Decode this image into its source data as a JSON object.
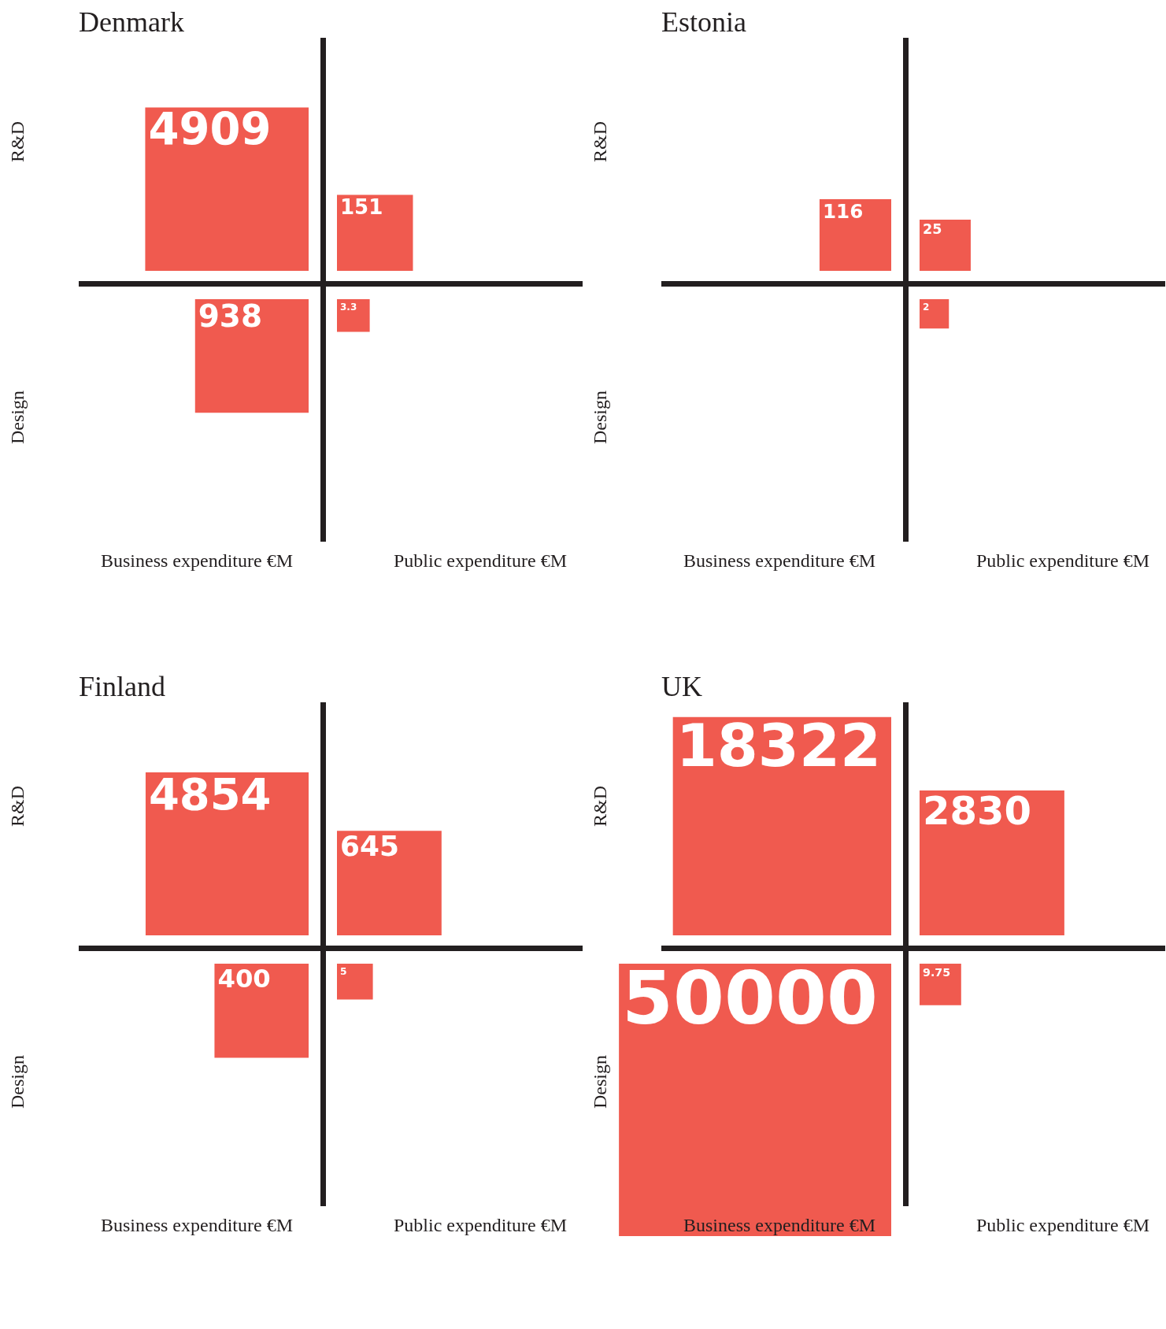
{
  "chart_data": [
    {
      "type": "other",
      "title": "Denmark",
      "categories": [
        "Business expenditure €M",
        "Public expenditure €M"
      ],
      "annotations": [
        "R&D",
        "Design"
      ],
      "data_labels": true,
      "series": [
        {
          "color": "#f05a4f",
          "values": [
            4909,
            151
          ]
        },
        {
          "color": "#f05a4f",
          "values": [
            938,
            3.3
          ]
        }
      ]
    },
    {
      "type": "other",
      "title": "Estonia",
      "categories": [
        "Business expenditure €M",
        "Public expenditure €M"
      ],
      "annotations": [
        "R&D",
        "Design"
      ],
      "data_labels": true,
      "series": [
        {
          "color": "#f05a4f",
          "values": [
            116,
            25
          ]
        },
        {
          "color": "#f05a4f",
          "values": [
            null,
            2
          ]
        }
      ]
    },
    {
      "type": "other",
      "title": "Finland",
      "categories": [
        "Business expenditure €M",
        "Public expenditure €M"
      ],
      "annotations": [
        "R&D",
        "Design"
      ],
      "data_labels": true,
      "series": [
        {
          "color": "#f05a4f",
          "values": [
            4854,
            645
          ]
        },
        {
          "color": "#f05a4f",
          "values": [
            400,
            5
          ]
        }
      ]
    },
    {
      "type": "other",
      "title": "UK",
      "categories": [
        "Business expenditure €M",
        "Public expenditure €M"
      ],
      "annotations": [
        "R&D",
        "Design"
      ],
      "data_labels": true,
      "series": [
        {
          "color": "#f05a4f",
          "values": [
            18322,
            2830
          ]
        },
        {
          "color": "#f05a4f",
          "values": [
            50000,
            9.75
          ]
        }
      ]
    }
  ]
}
